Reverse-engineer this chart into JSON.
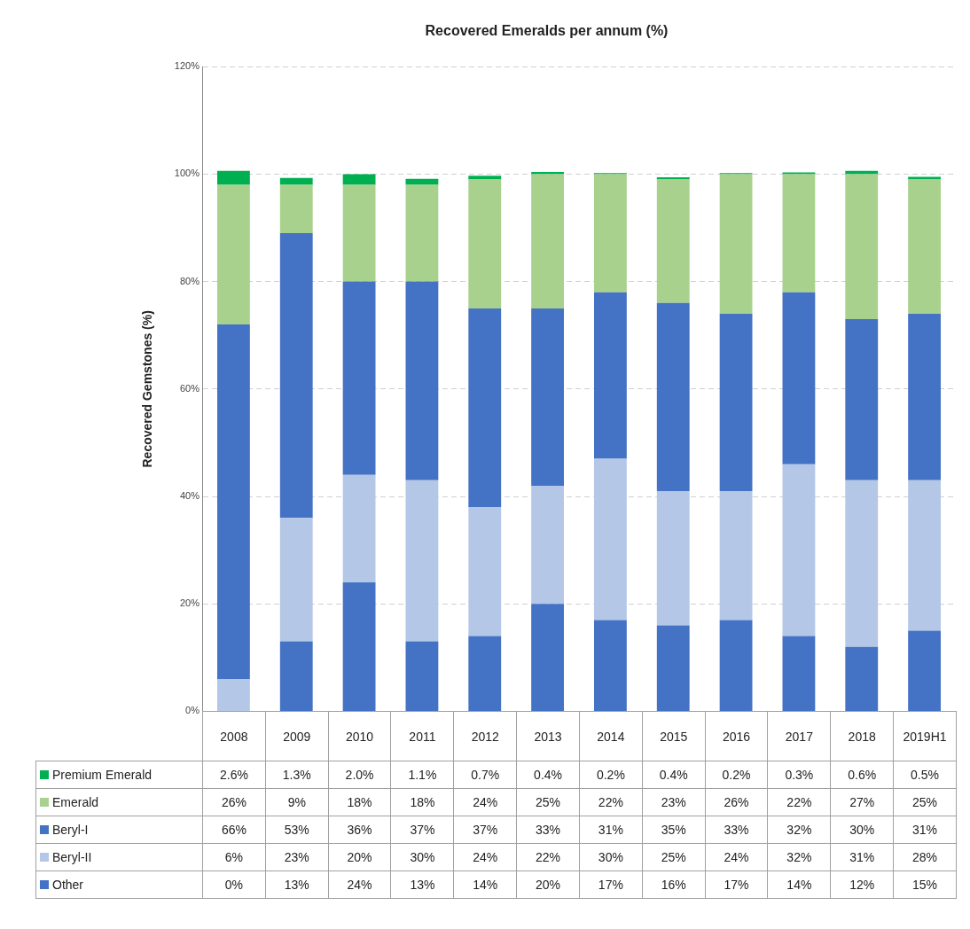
{
  "chart_data": {
    "type": "bar",
    "title": "Recovered Emeralds per annum (%)",
    "ylabel": "Recovered Gemstones (%)",
    "stacked": true,
    "grid": "y",
    "legend": "bottom",
    "categories": [
      "2008",
      "2009",
      "2010",
      "2011",
      "2012",
      "2013",
      "2014",
      "2015",
      "2016",
      "2017",
      "2018",
      "2019H1"
    ],
    "ylim": [
      0,
      120
    ],
    "yticks": [
      {
        "value": 0,
        "label": "0%"
      },
      {
        "value": 20,
        "label": "20%"
      },
      {
        "value": 40,
        "label": "40%"
      },
      {
        "value": 60,
        "label": "60%"
      },
      {
        "value": 80,
        "label": "80%"
      },
      {
        "value": 100,
        "label": "100%"
      },
      {
        "value": 120,
        "label": "120%"
      }
    ],
    "series": [
      {
        "name": "Other",
        "color": "#4472c4",
        "values": [
          0,
          13,
          24,
          13,
          14,
          20,
          17,
          16,
          17,
          14,
          12,
          15
        ],
        "value_labels": [
          "0%",
          "13%",
          "24%",
          "13%",
          "14%",
          "20%",
          "17%",
          "16%",
          "17%",
          "14%",
          "12%",
          "15%"
        ]
      },
      {
        "name": "Beryl-II",
        "color": "#b4c7e7",
        "values": [
          6,
          23,
          20,
          30,
          24,
          22,
          30,
          25,
          24,
          32,
          31,
          28
        ],
        "value_labels": [
          "6%",
          "23%",
          "20%",
          "30%",
          "24%",
          "22%",
          "30%",
          "25%",
          "24%",
          "32%",
          "31%",
          "28%"
        ]
      },
      {
        "name": "Beryl-I",
        "color": "#4472c4",
        "values": [
          66,
          53,
          36,
          37,
          37,
          33,
          31,
          35,
          33,
          32,
          30,
          31
        ],
        "value_labels": [
          "66%",
          "53%",
          "36%",
          "37%",
          "37%",
          "33%",
          "31%",
          "35%",
          "33%",
          "32%",
          "30%",
          "31%"
        ]
      },
      {
        "name": "Emerald",
        "color": "#a9d18e",
        "values": [
          26,
          9,
          18,
          18,
          24,
          25,
          22,
          23,
          26,
          22,
          27,
          25
        ],
        "value_labels": [
          "26%",
          "9%",
          "18%",
          "18%",
          "24%",
          "25%",
          "22%",
          "23%",
          "26%",
          "22%",
          "27%",
          "25%"
        ]
      },
      {
        "name": "Premium Emerald",
        "color": "#00b050",
        "values": [
          2.6,
          1.3,
          2.0,
          1.1,
          0.7,
          0.4,
          0.2,
          0.4,
          0.2,
          0.3,
          0.6,
          0.5
        ],
        "value_labels": [
          "2.6%",
          "1.3%",
          "2.0%",
          "1.1%",
          "0.7%",
          "0.4%",
          "0.2%",
          "0.4%",
          "0.2%",
          "0.3%",
          "0.6%",
          "0.5%"
        ]
      }
    ]
  }
}
